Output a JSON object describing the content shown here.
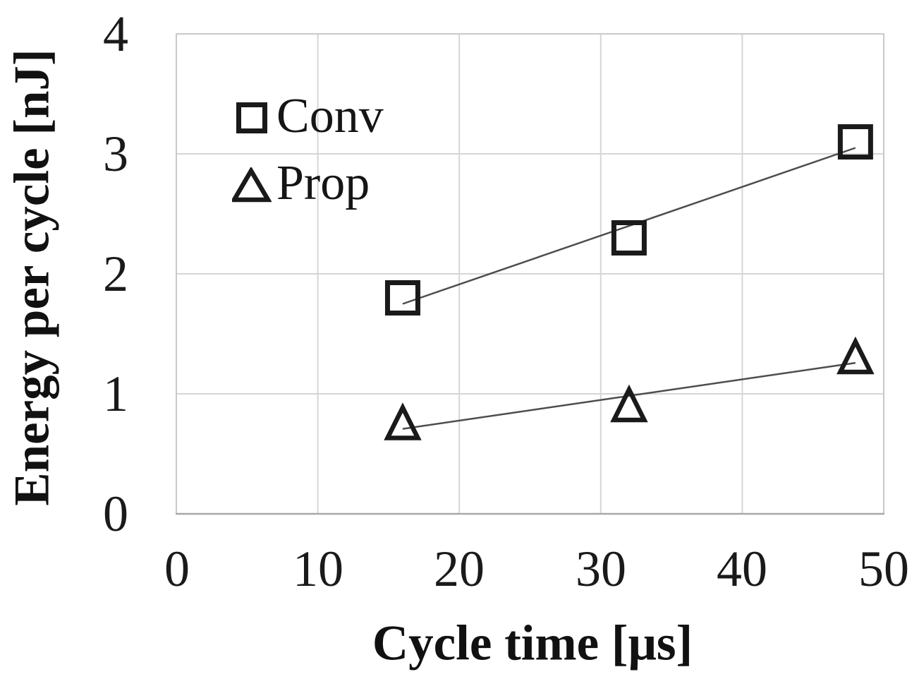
{
  "figure": {
    "background": "#ffffff",
    "text_color": "#1a1a1a"
  },
  "chart_data": {
    "type": "scatter",
    "title": "",
    "xlabel": "Cycle time [μs]",
    "ylabel": "Energy per cycle [nJ]",
    "xlim": [
      0,
      50
    ],
    "ylim": [
      0,
      4
    ],
    "x_ticks": [
      0,
      10,
      20,
      30,
      40,
      50
    ],
    "y_ticks": [
      0,
      1,
      2,
      3,
      4
    ],
    "grid": true,
    "legend": {
      "position": "inside-top-left",
      "entries": [
        {
          "label": "Conv",
          "marker": "square-outline-icon"
        },
        {
          "label": "Prop",
          "marker": "triangle-outline-icon"
        }
      ]
    },
    "series": [
      {
        "name": "Conv",
        "marker": "square",
        "trendline": "linear",
        "x": [
          16,
          32,
          48
        ],
        "y": [
          1.8,
          2.3,
          3.1
        ]
      },
      {
        "name": "Prop",
        "marker": "triangle",
        "trendline": "linear",
        "x": [
          16,
          32,
          48
        ],
        "y": [
          0.75,
          0.9,
          1.3
        ]
      }
    ],
    "colors": {
      "marker": "#1a1a1a",
      "trendline": "#4d4d4d",
      "gridline": "#d6d6d6",
      "axis_border": "#c9c9c9",
      "axis_bottom": "#a8a8a8"
    }
  }
}
